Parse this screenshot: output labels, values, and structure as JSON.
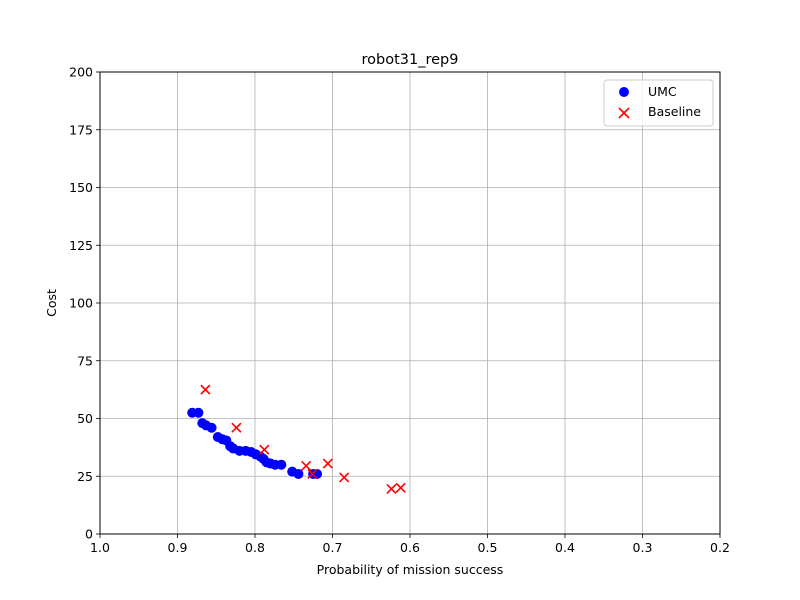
{
  "chart_data": {
    "type": "scatter",
    "title": "robot31_rep9",
    "xlabel": "Probability of mission success",
    "ylabel": "Cost",
    "xlim": [
      1.0,
      0.2
    ],
    "ylim": [
      0,
      200
    ],
    "x_inverted": true,
    "xticks": [
      1.0,
      0.9,
      0.8,
      0.7,
      0.6,
      0.5,
      0.4,
      0.3,
      0.2
    ],
    "xtick_labels": [
      "1.0",
      "0.9",
      "0.8",
      "0.7",
      "0.6",
      "0.5",
      "0.4",
      "0.3",
      "0.2"
    ],
    "yticks": [
      0,
      25,
      50,
      75,
      100,
      125,
      150,
      175,
      200
    ],
    "ytick_labels": [
      "0",
      "25",
      "50",
      "75",
      "100",
      "125",
      "150",
      "175",
      "200"
    ],
    "grid": true,
    "legend_position": "top-right",
    "series": [
      {
        "name": "UMC",
        "marker": "circle",
        "color": "#0000ff",
        "points": [
          {
            "x": 0.881,
            "y": 52.5
          },
          {
            "x": 0.873,
            "y": 52.5
          },
          {
            "x": 0.868,
            "y": 48.0
          },
          {
            "x": 0.863,
            "y": 47.0
          },
          {
            "x": 0.856,
            "y": 46.0
          },
          {
            "x": 0.848,
            "y": 42.0
          },
          {
            "x": 0.842,
            "y": 41.0
          },
          {
            "x": 0.837,
            "y": 40.5
          },
          {
            "x": 0.832,
            "y": 38.0
          },
          {
            "x": 0.828,
            "y": 37.0
          },
          {
            "x": 0.82,
            "y": 36.0
          },
          {
            "x": 0.812,
            "y": 36.0
          },
          {
            "x": 0.805,
            "y": 35.5
          },
          {
            "x": 0.799,
            "y": 34.5
          },
          {
            "x": 0.793,
            "y": 33.5
          },
          {
            "x": 0.789,
            "y": 32.5
          },
          {
            "x": 0.785,
            "y": 31.0
          },
          {
            "x": 0.78,
            "y": 30.5
          },
          {
            "x": 0.774,
            "y": 30.0
          },
          {
            "x": 0.766,
            "y": 30.0
          },
          {
            "x": 0.752,
            "y": 27.0
          },
          {
            "x": 0.744,
            "y": 26.0
          },
          {
            "x": 0.725,
            "y": 26.0
          },
          {
            "x": 0.72,
            "y": 26.0
          }
        ]
      },
      {
        "name": "Baseline",
        "marker": "x",
        "color": "#ff0000",
        "points": [
          {
            "x": 0.864,
            "y": 62.5
          },
          {
            "x": 0.824,
            "y": 46.0
          },
          {
            "x": 0.788,
            "y": 36.5
          },
          {
            "x": 0.734,
            "y": 29.5
          },
          {
            "x": 0.726,
            "y": 26.0
          },
          {
            "x": 0.706,
            "y": 30.5
          },
          {
            "x": 0.685,
            "y": 24.5
          },
          {
            "x": 0.624,
            "y": 19.5
          },
          {
            "x": 0.612,
            "y": 20.0
          }
        ]
      }
    ]
  }
}
